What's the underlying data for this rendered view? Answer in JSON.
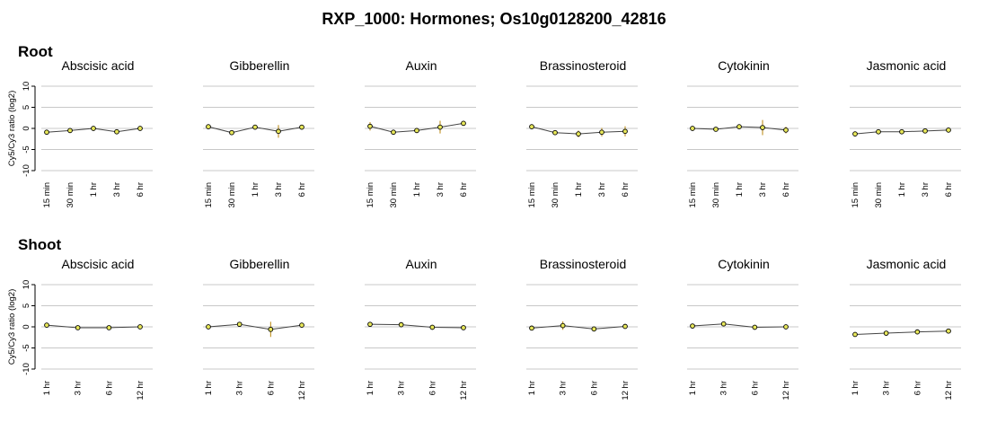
{
  "title": "RXP_1000: Hormones; Os10g0128200_42816",
  "colors": {
    "point_fill": "#e8e85a",
    "error_bar": "#b8860b",
    "line": "#444444",
    "grid": "#c8c8c8"
  },
  "chart_data": [
    {
      "section": "Root",
      "type": "line",
      "ylabel": "Cy5/Cy3 ratio (log2)",
      "ylim": [
        -10,
        10
      ],
      "yticks": [
        "-10",
        "-5",
        "0",
        "5",
        "10"
      ],
      "categories": [
        "15 min",
        "30 min",
        "1 hr",
        "3 hr",
        "6 hr"
      ],
      "grid": true,
      "panels": [
        {
          "title": "Abscisic acid",
          "values": [
            -0.9,
            -0.5,
            0.0,
            -0.8,
            0.0
          ],
          "errors": [
            0.4,
            0.3,
            0.3,
            0.3,
            0.5
          ]
        },
        {
          "title": "Gibberellin",
          "values": [
            0.4,
            -1.0,
            0.3,
            -0.7,
            0.3
          ],
          "errors": [
            0.5,
            0.2,
            0.3,
            1.5,
            0.2
          ]
        },
        {
          "title": "Auxin",
          "values": [
            0.5,
            -0.9,
            -0.5,
            0.3,
            1.2
          ],
          "errors": [
            1.0,
            0.3,
            0.6,
            1.5,
            0.3
          ]
        },
        {
          "title": "Brassinosteroid",
          "values": [
            0.4,
            -1.0,
            -1.3,
            -0.9,
            -0.7
          ],
          "errors": [
            0.5,
            0.2,
            0.8,
            1.0,
            1.2
          ]
        },
        {
          "title": "Cytokinin",
          "values": [
            0.0,
            -0.2,
            0.4,
            0.2,
            -0.4
          ],
          "errors": [
            0.5,
            0.2,
            0.5,
            1.8,
            0.8
          ]
        },
        {
          "title": "Jasmonic acid",
          "values": [
            -1.3,
            -0.8,
            -0.8,
            -0.6,
            -0.4
          ],
          "errors": [
            0.2,
            0.4,
            0.2,
            0.2,
            0.2
          ]
        }
      ]
    },
    {
      "section": "Shoot",
      "type": "line",
      "ylabel": "Cy5/Cy3 ratio (log2)",
      "ylim": [
        -10,
        10
      ],
      "yticks": [
        "-10",
        "-5",
        "0",
        "5",
        "10"
      ],
      "categories": [
        "1 hr",
        "3 hr",
        "6 hr",
        "12 hr"
      ],
      "grid": true,
      "panels": [
        {
          "title": "Abscisic acid",
          "values": [
            0.4,
            -0.2,
            -0.2,
            0.0
          ],
          "errors": [
            0.2,
            0.2,
            0.2,
            0.2
          ]
        },
        {
          "title": "Gibberellin",
          "values": [
            0.0,
            0.6,
            -0.6,
            0.4
          ],
          "errors": [
            0.3,
            0.3,
            1.8,
            0.3
          ]
        },
        {
          "title": "Auxin",
          "values": [
            0.6,
            0.5,
            -0.1,
            -0.2
          ],
          "errors": [
            0.2,
            0.2,
            0.2,
            0.2
          ]
        },
        {
          "title": "Brassinosteroid",
          "values": [
            -0.3,
            0.3,
            -0.5,
            0.1
          ],
          "errors": [
            0.3,
            1.0,
            0.3,
            0.3
          ]
        },
        {
          "title": "Cytokinin",
          "values": [
            0.2,
            0.7,
            -0.1,
            0.0
          ],
          "errors": [
            0.2,
            0.3,
            0.2,
            0.2
          ]
        },
        {
          "title": "Jasmonic acid",
          "values": [
            -1.8,
            -1.5,
            -1.2,
            -1.0
          ],
          "errors": [
            0.2,
            0.2,
            0.2,
            0.2
          ]
        }
      ]
    }
  ]
}
